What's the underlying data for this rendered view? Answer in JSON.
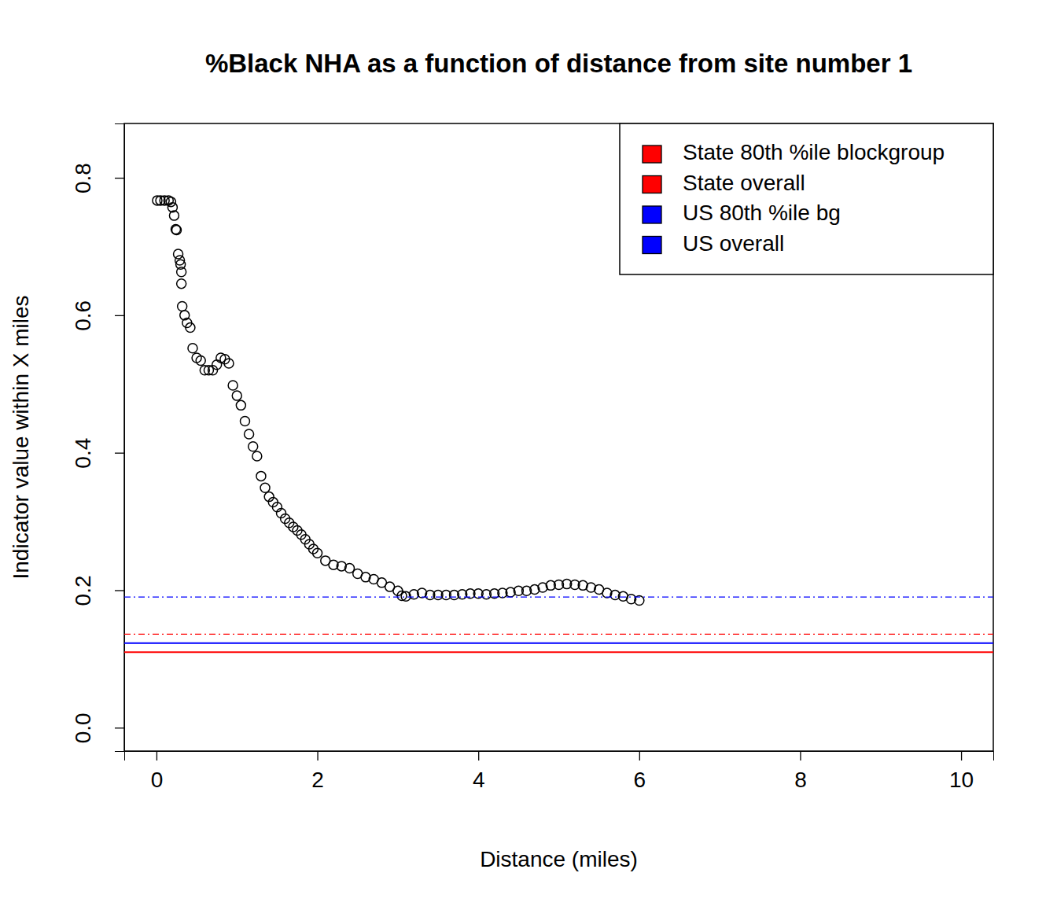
{
  "chart_data": {
    "type": "scatter",
    "title": "%Black NHA as a function of distance from site number 1",
    "x_label": "Distance (miles)",
    "y_label": "Indicator value within X miles",
    "xlim": [
      -0.4,
      10.4
    ],
    "ylim": [
      -0.034,
      0.879
    ],
    "xticks": [
      0,
      2,
      4,
      6,
      8,
      10
    ],
    "yticks": [
      {
        "value": 0,
        "label": "0.0"
      },
      {
        "value": 0.2,
        "label": "0.2"
      },
      {
        "value": 0.4,
        "label": "0.4"
      },
      {
        "value": 0.6,
        "label": "0.6"
      },
      {
        "value": 0.8,
        "label": "0.8"
      }
    ],
    "legend": "topright",
    "series": [
      {
        "type": "scatter",
        "marker": "circle",
        "color": "#000000",
        "x": [
          0.01,
          0.05,
          0.1,
          0.15,
          0.18,
          0.2,
          0.22,
          0.24,
          0.25,
          0.27,
          0.29,
          0.3,
          0.31,
          0.31,
          0.32,
          0.35,
          0.38,
          0.42,
          0.45,
          0.5,
          0.55,
          0.6,
          0.65,
          0.7,
          0.75,
          0.8,
          0.85,
          0.9,
          0.95,
          1.0,
          1.05,
          1.1,
          1.15,
          1.2,
          1.25,
          1.3,
          1.35,
          1.4,
          1.45,
          1.5,
          1.55,
          1.6,
          1.65,
          1.7,
          1.75,
          1.8,
          1.85,
          1.9,
          1.95,
          2.0,
          2.1,
          2.2,
          2.3,
          2.4,
          2.5,
          2.6,
          2.7,
          2.8,
          2.9,
          3.0,
          3.05,
          3.1,
          3.2,
          3.3,
          3.4,
          3.5,
          3.6,
          3.7,
          3.8,
          3.9,
          4.0,
          4.1,
          4.2,
          4.3,
          4.4,
          4.5,
          4.6,
          4.7,
          4.8,
          4.9,
          5.0,
          5.1,
          5.2,
          5.3,
          5.4,
          5.5,
          5.6,
          5.7,
          5.8,
          5.9,
          6.0
        ],
        "values": [
          0.767,
          0.767,
          0.767,
          0.767,
          0.765,
          0.757,
          0.745,
          0.725,
          0.724,
          0.689,
          0.68,
          0.674,
          0.663,
          0.646,
          0.613,
          0.6,
          0.589,
          0.582,
          0.552,
          0.538,
          0.534,
          0.52,
          0.52,
          0.52,
          0.528,
          0.538,
          0.536,
          0.53,
          0.498,
          0.483,
          0.469,
          0.446,
          0.427,
          0.409,
          0.395,
          0.366,
          0.349,
          0.336,
          0.328,
          0.321,
          0.312,
          0.304,
          0.298,
          0.292,
          0.287,
          0.281,
          0.274,
          0.267,
          0.26,
          0.254,
          0.243,
          0.237,
          0.235,
          0.232,
          0.224,
          0.219,
          0.216,
          0.211,
          0.205,
          0.199,
          0.192,
          0.191,
          0.194,
          0.196,
          0.193,
          0.193,
          0.193,
          0.193,
          0.194,
          0.195,
          0.195,
          0.194,
          0.195,
          0.196,
          0.197,
          0.199,
          0.199,
          0.201,
          0.204,
          0.207,
          0.208,
          0.209,
          0.208,
          0.207,
          0.204,
          0.201,
          0.196,
          0.193,
          0.191,
          0.187,
          0.185
        ]
      },
      {
        "type": "hline",
        "name": "State 80th %ile blockgroup",
        "color": "#ff0000",
        "line_style": "dashdot",
        "values": [
          0.136
        ]
      },
      {
        "type": "hline",
        "name": "State overall",
        "color": "#ff0000",
        "line_style": "solid",
        "values": [
          0.11
        ]
      },
      {
        "type": "hline",
        "name": "US 80th %ile bg",
        "color": "#0000ff",
        "line_style": "dashdot",
        "values": [
          0.19
        ]
      },
      {
        "type": "hline",
        "name": "US overall",
        "color": "#0000ff",
        "line_style": "solid",
        "values": [
          0.123
        ]
      }
    ]
  }
}
